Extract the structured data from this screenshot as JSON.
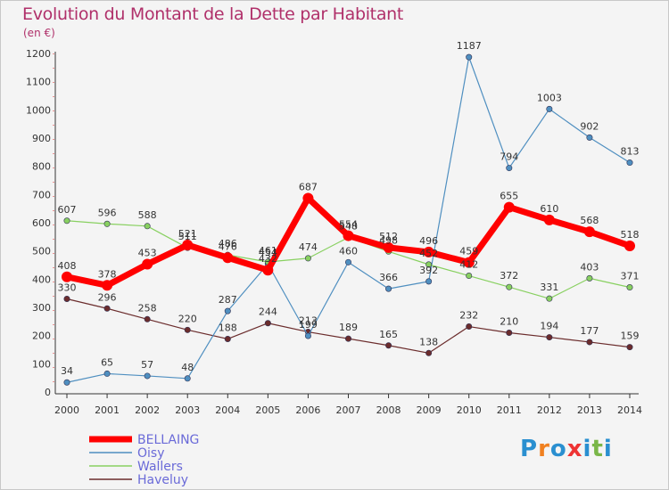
{
  "title": "Evolution du Montant de la Dette par Habitant",
  "subtitle": "(en €)",
  "brand": {
    "letters": [
      "P",
      "r",
      "o",
      "x",
      "i",
      "t",
      "i"
    ],
    "colors": [
      "#2a8fd0",
      "#f08020",
      "#2a8fd0",
      "#e33",
      "#2a8fd0",
      "#7ab648",
      "#2a8fd0"
    ]
  },
  "chart_data": {
    "type": "line",
    "x": [
      "2000",
      "2001",
      "2002",
      "2003",
      "2004",
      "2005",
      "2006",
      "2007",
      "2008",
      "2009",
      "2010",
      "2011",
      "2012",
      "2013",
      "2014"
    ],
    "ylim": [
      0,
      1200
    ],
    "yticks": [
      "0",
      "100",
      "200",
      "300",
      "400",
      "500",
      "600",
      "700",
      "800",
      "900",
      "1000",
      "1100",
      "1200"
    ],
    "grid": false,
    "legend_position": "bottom-left",
    "series": [
      {
        "name": "BELLAING",
        "color": "#ff0000",
        "values": [
          408,
          378,
          453,
          521,
          476,
          432,
          687,
          554,
          512,
          496,
          459,
          655,
          610,
          568,
          518
        ]
      },
      {
        "name": "Oisy",
        "color": "#4f8fc0",
        "values": [
          34,
          65,
          57,
          48,
          287,
          454,
          199,
          460,
          366,
          392,
          1187,
          794,
          1003,
          902,
          813
        ]
      },
      {
        "name": "Wallers",
        "color": "#88d060",
        "values": [
          607,
          596,
          588,
          511,
          486,
          461,
          474,
          548,
          498,
          452,
          412,
          372,
          331,
          403,
          371
        ]
      },
      {
        "name": "Haveluy",
        "color": "#6b2c2c",
        "values": [
          330,
          296,
          258,
          220,
          188,
          244,
          213,
          189,
          165,
          138,
          232,
          210,
          194,
          177,
          159
        ]
      }
    ]
  }
}
